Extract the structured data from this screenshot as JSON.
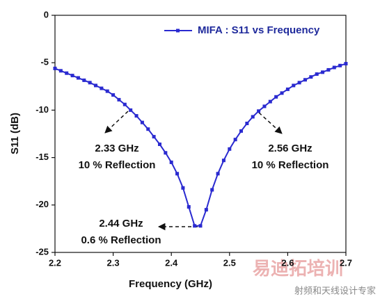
{
  "chart_data": {
    "type": "line",
    "xlabel": "Frequency (GHz)",
    "ylabel": "S11 (dB)",
    "x": [
      2.2,
      2.21,
      2.22,
      2.23,
      2.24,
      2.25,
      2.26,
      2.27,
      2.28,
      2.29,
      2.3,
      2.31,
      2.32,
      2.33,
      2.34,
      2.35,
      2.36,
      2.37,
      2.38,
      2.39,
      2.4,
      2.41,
      2.42,
      2.43,
      2.44,
      2.45,
      2.46,
      2.47,
      2.48,
      2.49,
      2.5,
      2.51,
      2.52,
      2.53,
      2.54,
      2.55,
      2.56,
      2.57,
      2.58,
      2.59,
      2.6,
      2.61,
      2.62,
      2.63,
      2.64,
      2.65,
      2.66,
      2.67,
      2.68,
      2.69,
      2.7
    ],
    "series": [
      {
        "name": "MIFA : S11 vs Frequency",
        "color": "#2a2ad0",
        "values": [
          -5.6,
          -5.85,
          -6.1,
          -6.35,
          -6.6,
          -6.85,
          -7.1,
          -7.4,
          -7.7,
          -8.0,
          -8.4,
          -8.9,
          -9.4,
          -10.0,
          -10.6,
          -11.3,
          -12.0,
          -12.8,
          -13.6,
          -14.5,
          -15.5,
          -16.7,
          -18.2,
          -20.2,
          -22.2,
          -22.2,
          -20.5,
          -18.4,
          -16.7,
          -15.3,
          -14.1,
          -13.1,
          -12.2,
          -11.4,
          -10.7,
          -10.1,
          -9.6,
          -9.1,
          -8.6,
          -8.2,
          -7.8,
          -7.4,
          -7.1,
          -6.8,
          -6.5,
          -6.2,
          -6.0,
          -5.75,
          -5.5,
          -5.3,
          -5.1
        ]
      }
    ],
    "xlim": [
      2.2,
      2.7
    ],
    "xticks": [
      2.2,
      2.3,
      2.4,
      2.5,
      2.6,
      2.7
    ],
    "ylim": [
      -25,
      0
    ],
    "yticks": [
      0,
      -5,
      -10,
      -15,
      -20,
      -25
    ],
    "legend": "upper right",
    "annotations": [
      "2.33 GHz",
      "10 % Reflection",
      "2.56 GHz",
      "10 % Reflection",
      "2.44 GHz",
      "0.6 % Reflection"
    ]
  },
  "watermark": {
    "title": "易迪拓培训",
    "subtitle": "射频和天线设计专家"
  }
}
